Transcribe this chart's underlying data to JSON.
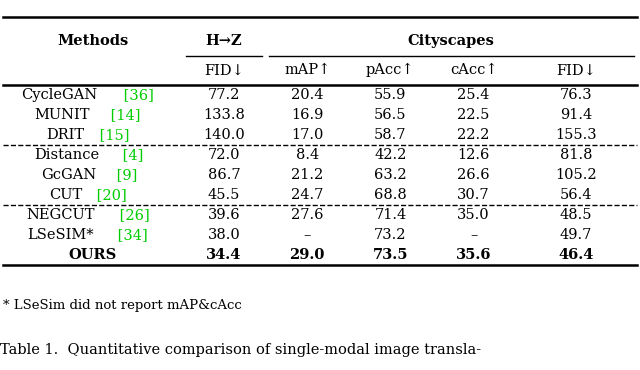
{
  "col_headers_row1_methods": "Methods",
  "col_headers_row1_hz": "H→Z",
  "col_headers_row1_cs": "Cityscapes",
  "col_headers_row2": [
    "FID↓",
    "mAP↑",
    "pAcc↑",
    "cAcc↑",
    "FID↓"
  ],
  "rows": [
    [
      "CycleGAN",
      " [36]",
      "77.2",
      "20.4",
      "55.9",
      "25.4",
      "76.3"
    ],
    [
      "MUNIT",
      " [14]",
      "133.8",
      "16.9",
      "56.5",
      "22.5",
      "91.4"
    ],
    [
      "DRIT",
      " [15]",
      "140.0",
      "17.0",
      "58.7",
      "22.2",
      "155.3"
    ],
    [
      "Distance",
      " [4]",
      "72.0",
      "8.4",
      "42.2",
      "12.6",
      "81.8"
    ],
    [
      "GcGAN",
      " [9]",
      "86.7",
      "21.2",
      "63.2",
      "26.6",
      "105.2"
    ],
    [
      "CUT",
      " [20]",
      "45.5",
      "24.7",
      "68.8",
      "30.7",
      "56.4"
    ],
    [
      "NEGCUT",
      " [26]",
      "39.6",
      "27.6",
      "71.4",
      "35.0",
      "48.5"
    ],
    [
      "LSeSIM*",
      " [34]",
      "38.0",
      "–",
      "73.2",
      "–",
      "49.7"
    ],
    [
      "OURS",
      "",
      "34.4",
      "29.0",
      "73.5",
      "35.6",
      "46.4"
    ]
  ],
  "bold_rows": [
    8
  ],
  "dashed_after": [
    2,
    5
  ],
  "ref_color": "#00cc00",
  "footnote": "* LSeSim did not report mAP&cAcc",
  "caption": "Table 1.  Quantitative comparison of single-modal image transla-",
  "bg_color": "#ffffff",
  "text_color": "#000000",
  "font_size": 10.5,
  "figsize": [
    6.4,
    3.7
  ]
}
